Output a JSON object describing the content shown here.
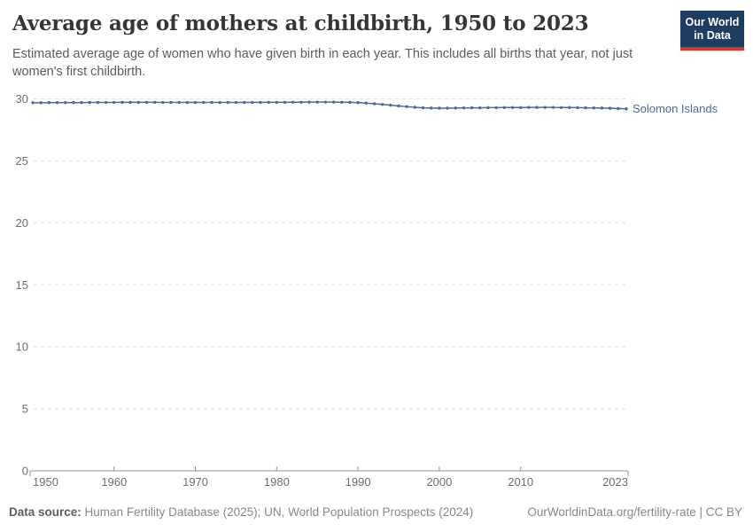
{
  "header": {
    "title": "Average age of mothers at childbirth, 1950 to 2023",
    "subtitle": "Estimated average age of women who have given birth in each year. This includes all births that year, not just women's first childbirth."
  },
  "logo": {
    "line1": "Our World",
    "line2": "in Data",
    "bg_color": "#1d3d63",
    "accent_color": "#dc352b"
  },
  "chart_data": {
    "type": "line",
    "title": "Average age of mothers at childbirth, 1950 to 2023",
    "xlabel": "",
    "ylabel": "",
    "x_start_year": 1950,
    "x_end_year": 2023,
    "xticks": [
      1950,
      1960,
      1970,
      1980,
      1990,
      2000,
      2010,
      2023
    ],
    "yticks": [
      0,
      5,
      10,
      15,
      20,
      25,
      30
    ],
    "ylim": [
      0,
      30
    ],
    "grid": "horizontal-dashed",
    "legend_position": "end-of-line-label",
    "end_label": "Solomon Islands",
    "series": [
      {
        "name": "Solomon Islands",
        "color": "#4c6a9c",
        "values": [
          29.69,
          29.69,
          29.7,
          29.7,
          29.7,
          29.7,
          29.7,
          29.71,
          29.71,
          29.71,
          29.71,
          29.72,
          29.72,
          29.72,
          29.72,
          29.72,
          29.71,
          29.71,
          29.71,
          29.71,
          29.71,
          29.71,
          29.71,
          29.71,
          29.71,
          29.71,
          29.71,
          29.71,
          29.72,
          29.72,
          29.72,
          29.72,
          29.73,
          29.73,
          29.74,
          29.74,
          29.74,
          29.74,
          29.73,
          29.72,
          29.7,
          29.66,
          29.61,
          29.55,
          29.49,
          29.43,
          29.37,
          29.32,
          29.28,
          29.26,
          29.25,
          29.25,
          29.26,
          29.27,
          29.28,
          29.28,
          29.29,
          29.29,
          29.3,
          29.3,
          29.3,
          29.31,
          29.31,
          29.31,
          29.31,
          29.3,
          29.3,
          29.29,
          29.28,
          29.27,
          29.26,
          29.24,
          29.22,
          29.2
        ]
      }
    ],
    "colors": {
      "line": "#4c6a9c",
      "gridline": "#dddddd",
      "axis": "#949494",
      "tick_label": "#6e6e6e"
    }
  },
  "footer": {
    "source_label": "Data source:",
    "source_text": "Human Fertility Database (2025); UN, World Population Prospects (2024)",
    "attribution": "OurWorldinData.org/fertility-rate | CC BY"
  }
}
